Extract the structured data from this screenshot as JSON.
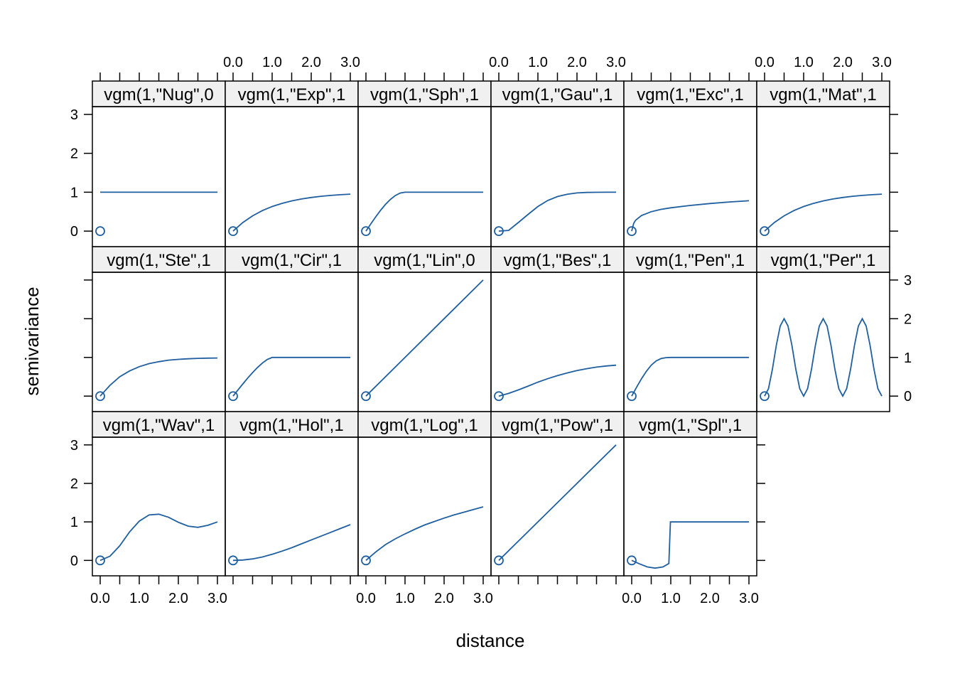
{
  "chart_data": {
    "type": "line",
    "layout": {
      "columns": 6,
      "rows": 3,
      "order": "top-to-bottom, left-to-right"
    },
    "xlabel": "distance",
    "ylabel": "semivariance",
    "xlim": [
      -0.2,
      3.2
    ],
    "ylim": [
      -0.4,
      3.2
    ],
    "x_ticks": [
      0,
      0.5,
      1,
      1.5,
      2,
      2.5,
      3
    ],
    "x_tick_labels": [
      "0.0",
      "1.0",
      "2.0",
      "3.0"
    ],
    "x_tick_label_values": [
      0,
      1,
      2,
      3
    ],
    "y_ticks": [
      0,
      1,
      2,
      3
    ],
    "y_tick_labels": [
      "0",
      "1",
      "2",
      "3"
    ],
    "grid": false,
    "line_color": "#1f5fa0",
    "strip_background": "#f0f0f0",
    "panels": [
      {
        "strip": "vgm(1,\"Nug\",0",
        "model": "Nug",
        "x": [
          0,
          0.5,
          1,
          1.5,
          2,
          2.5,
          3
        ],
        "y": [
          1,
          1,
          1,
          1,
          1,
          1,
          1
        ],
        "origin_point": [
          0,
          0
        ]
      },
      {
        "strip": "vgm(1,\"Exp\",1",
        "model": "Exp",
        "x": [
          0,
          0.25,
          0.5,
          0.75,
          1,
          1.25,
          1.5,
          1.75,
          2,
          2.25,
          2.5,
          2.75,
          3
        ],
        "y": [
          0,
          0.221,
          0.393,
          0.528,
          0.632,
          0.713,
          0.777,
          0.826,
          0.865,
          0.895,
          0.918,
          0.936,
          0.95
        ],
        "origin_point": [
          0,
          0
        ]
      },
      {
        "strip": "vgm(1,\"Sph\",1",
        "model": "Sph",
        "x": [
          0,
          0.125,
          0.25,
          0.375,
          0.5,
          0.625,
          0.75,
          0.875,
          1,
          1.5,
          2,
          2.5,
          3
        ],
        "y": [
          0,
          0.187,
          0.367,
          0.536,
          0.688,
          0.816,
          0.914,
          0.978,
          1,
          1,
          1,
          1,
          1
        ],
        "origin_point": [
          0,
          0
        ]
      },
      {
        "strip": "vgm(1,\"Gau\",1",
        "model": "Gau",
        "x": [
          0,
          0.25,
          0.5,
          0.75,
          1,
          1.25,
          1.5,
          1.75,
          2,
          2.25,
          2.5,
          2.75,
          3
        ],
        "y": [
          0,
          0.018,
          0.221,
          0.431,
          0.632,
          0.787,
          0.889,
          0.948,
          0.981,
          0.994,
          0.998,
          1,
          1
        ],
        "origin_point": [
          0,
          0
        ]
      },
      {
        "strip": "vgm(1,\"Exc\",1",
        "model": "Exc",
        "x": [
          0,
          0.05,
          0.1,
          0.25,
          0.5,
          0.75,
          1,
          1.5,
          2,
          2.5,
          3
        ],
        "y": [
          0,
          0.2,
          0.28,
          0.4,
          0.5,
          0.56,
          0.6,
          0.66,
          0.71,
          0.75,
          0.78
        ],
        "origin_point": [
          0,
          0
        ]
      },
      {
        "strip": "vgm(1,\"Mat\",1",
        "model": "Mat",
        "x": [
          0,
          0.25,
          0.5,
          0.75,
          1,
          1.25,
          1.5,
          1.75,
          2,
          2.25,
          2.5,
          2.75,
          3
        ],
        "y": [
          0,
          0.221,
          0.393,
          0.528,
          0.632,
          0.713,
          0.777,
          0.826,
          0.865,
          0.895,
          0.918,
          0.936,
          0.95
        ],
        "origin_point": [
          0,
          0
        ]
      },
      {
        "strip": "vgm(1,\"Ste\",1",
        "model": "Ste",
        "x": [
          0,
          0.25,
          0.5,
          0.75,
          1,
          1.25,
          1.5,
          1.75,
          2,
          2.25,
          2.5,
          2.75,
          3
        ],
        "y": [
          0,
          0.28,
          0.5,
          0.65,
          0.76,
          0.84,
          0.89,
          0.93,
          0.95,
          0.965,
          0.975,
          0.982,
          0.985
        ],
        "origin_point": [
          0,
          0
        ]
      },
      {
        "strip": "vgm(1,\"Cir\",1",
        "model": "Cir",
        "x": [
          0,
          0.125,
          0.25,
          0.375,
          0.5,
          0.625,
          0.75,
          0.875,
          1,
          1.5,
          2,
          2.5,
          3
        ],
        "y": [
          0,
          0.159,
          0.316,
          0.467,
          0.609,
          0.74,
          0.854,
          0.946,
          1,
          1,
          1,
          1,
          1
        ],
        "origin_point": [
          0,
          0
        ]
      },
      {
        "strip": "vgm(1,\"Lin\",0",
        "model": "Lin",
        "x": [
          0,
          3
        ],
        "y": [
          0,
          3
        ],
        "origin_point": [
          0,
          0
        ]
      },
      {
        "strip": "vgm(1,\"Bes\",1",
        "model": "Bes",
        "x": [
          0,
          0.25,
          0.5,
          0.75,
          1,
          1.25,
          1.5,
          1.75,
          2,
          2.25,
          2.5,
          2.75,
          3
        ],
        "y": [
          0,
          0.07,
          0.16,
          0.26,
          0.36,
          0.45,
          0.53,
          0.6,
          0.66,
          0.71,
          0.75,
          0.78,
          0.8
        ],
        "origin_point": [
          0,
          0
        ]
      },
      {
        "strip": "vgm(1,\"Pen\",1",
        "model": "Pen",
        "x": [
          0,
          0.125,
          0.25,
          0.375,
          0.5,
          0.625,
          0.75,
          0.875,
          1,
          1.5,
          2,
          2.5,
          3
        ],
        "y": [
          0,
          0.23,
          0.45,
          0.64,
          0.8,
          0.91,
          0.97,
          0.995,
          1,
          1,
          1,
          1,
          1
        ],
        "origin_point": [
          0,
          0
        ]
      },
      {
        "strip": "vgm(1,\"Per\",1",
        "model": "Per",
        "x": [
          0,
          0.1,
          0.2,
          0.3,
          0.4,
          0.5,
          0.6,
          0.7,
          0.8,
          0.9,
          1,
          1.1,
          1.2,
          1.3,
          1.4,
          1.5,
          1.6,
          1.7,
          1.8,
          1.9,
          2,
          2.1,
          2.2,
          2.3,
          2.4,
          2.5,
          2.6,
          2.7,
          2.8,
          2.9,
          3
        ],
        "y": [
          0,
          0.191,
          0.691,
          1.309,
          1.809,
          2,
          1.809,
          1.309,
          0.691,
          0.191,
          0,
          0.191,
          0.691,
          1.309,
          1.809,
          2,
          1.809,
          1.309,
          0.691,
          0.191,
          0,
          0.191,
          0.691,
          1.309,
          1.809,
          2,
          1.809,
          1.309,
          0.691,
          0.191,
          0
        ],
        "origin_point": [
          0,
          0
        ]
      },
      {
        "strip": "vgm(1,\"Wav\",1",
        "model": "Wav",
        "x": [
          0,
          0.25,
          0.5,
          0.75,
          1,
          1.25,
          1.5,
          1.75,
          2,
          2.25,
          2.5,
          2.75,
          3
        ],
        "y": [
          0,
          0.11,
          0.38,
          0.74,
          1.02,
          1.18,
          1.2,
          1.12,
          0.99,
          0.89,
          0.86,
          0.91,
          1
        ],
        "origin_point": [
          0,
          0
        ]
      },
      {
        "strip": "vgm(1,\"Hol\",1",
        "model": "Hol",
        "x": [
          0,
          0.25,
          0.5,
          0.75,
          1,
          1.25,
          1.5,
          1.75,
          2,
          2.25,
          2.5,
          2.75,
          3
        ],
        "y": [
          0,
          0.01,
          0.04,
          0.09,
          0.16,
          0.24,
          0.33,
          0.43,
          0.53,
          0.63,
          0.73,
          0.83,
          0.93
        ],
        "origin_point": [
          0,
          0
        ]
      },
      {
        "strip": "vgm(1,\"Log\",1",
        "model": "Log",
        "x": [
          0,
          0.25,
          0.5,
          0.75,
          1,
          1.25,
          1.5,
          1.75,
          2,
          2.25,
          2.5,
          2.75,
          3
        ],
        "y": [
          0,
          0.22,
          0.41,
          0.56,
          0.69,
          0.81,
          0.92,
          1.01,
          1.1,
          1.18,
          1.25,
          1.32,
          1.39
        ],
        "origin_point": [
          0,
          0
        ]
      },
      {
        "strip": "vgm(1,\"Pow\",1",
        "model": "Pow",
        "x": [
          0,
          3
        ],
        "y": [
          0,
          3
        ],
        "origin_point": [
          0,
          0
        ]
      },
      {
        "strip": "vgm(1,\"Spl\",1",
        "model": "Spl",
        "x": [
          0,
          0.2,
          0.4,
          0.6,
          0.8,
          0.95,
          0.99,
          1.5,
          2,
          2.5,
          3
        ],
        "y": [
          0,
          -0.09,
          -0.17,
          -0.2,
          -0.17,
          -0.08,
          1,
          1,
          1,
          1,
          1
        ],
        "origin_point": [
          0,
          0
        ]
      }
    ]
  }
}
